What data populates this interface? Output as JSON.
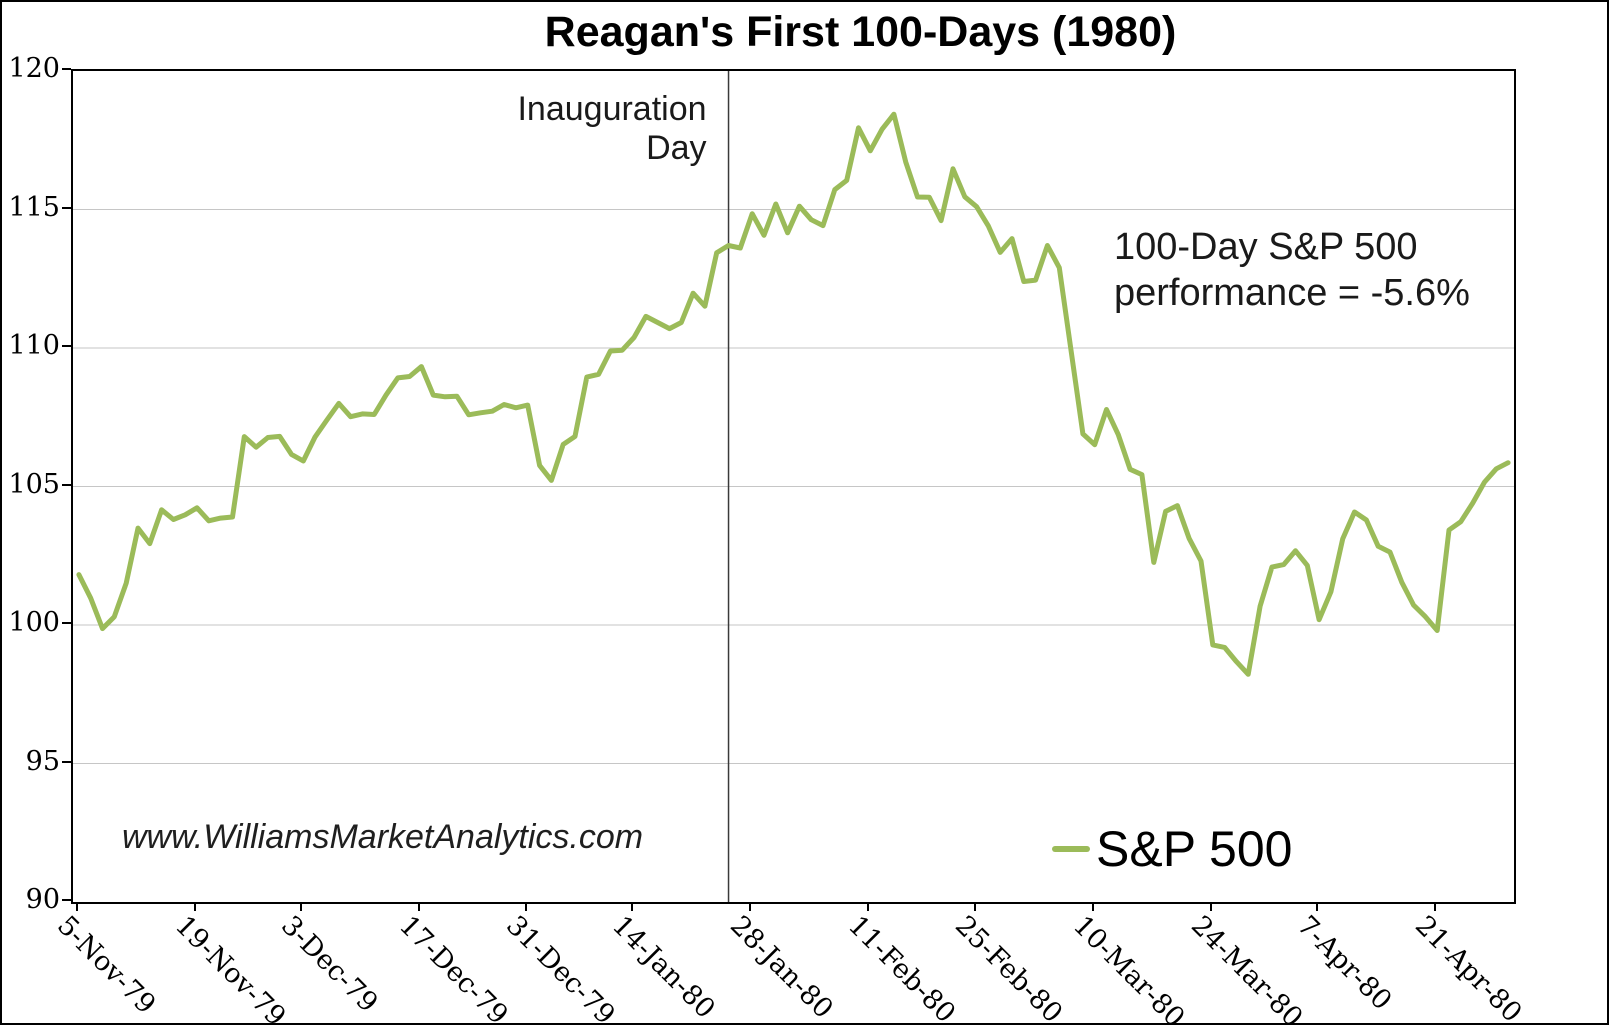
{
  "title": "Reagan's First 100-Days (1980)",
  "annotations": {
    "inauguration_label": "Inauguration Day",
    "performance_line1": "100-Day S&P 500",
    "performance_line2": "performance = -5.6%",
    "watermark": "www.WilliamsMarketAnalytics.com"
  },
  "legend": {
    "label": "S&P 500"
  },
  "colors": {
    "line": "#9BBB59",
    "grid": "#c6c6c6",
    "axis": "#000000",
    "marker_line": "#3a3a3a"
  },
  "chart_data": {
    "type": "line",
    "title": "Reagan's First 100-Days (1980)",
    "series_name": "S&P 500",
    "xlabel": "",
    "ylabel": "",
    "ylim": [
      90,
      120
    ],
    "y_ticks": [
      90,
      95,
      100,
      105,
      110,
      115,
      120
    ],
    "grid": "horizontal",
    "legend_position": "bottom-right-inside",
    "marker": {
      "label": "Inauguration Day",
      "date": "24-Jan-80"
    },
    "x_tick_labels": [
      "5-Nov-79",
      "19-Nov-79",
      "3-Dec-79",
      "17-Dec-79",
      "31-Dec-79",
      "14-Jan-80",
      "28-Jan-80",
      "11-Feb-80",
      "25-Feb-80",
      "10-Mar-80",
      "24-Mar-80",
      "7-Apr-80",
      "21-Apr-80"
    ],
    "dates": [
      "5-Nov-79",
      "6-Nov-79",
      "7-Nov-79",
      "8-Nov-79",
      "9-Nov-79",
      "12-Nov-79",
      "13-Nov-79",
      "14-Nov-79",
      "15-Nov-79",
      "16-Nov-79",
      "19-Nov-79",
      "20-Nov-79",
      "21-Nov-79",
      "23-Nov-79",
      "26-Nov-79",
      "27-Nov-79",
      "28-Nov-79",
      "29-Nov-79",
      "30-Nov-79",
      "3-Dec-79",
      "4-Dec-79",
      "5-Dec-79",
      "6-Dec-79",
      "7-Dec-79",
      "10-Dec-79",
      "11-Dec-79",
      "12-Dec-79",
      "13-Dec-79",
      "14-Dec-79",
      "17-Dec-79",
      "18-Dec-79",
      "19-Dec-79",
      "20-Dec-79",
      "21-Dec-79",
      "24-Dec-79",
      "26-Dec-79",
      "27-Dec-79",
      "28-Dec-79",
      "31-Dec-79",
      "2-Jan-80",
      "3-Jan-80",
      "4-Jan-80",
      "7-Jan-80",
      "8-Jan-80",
      "9-Jan-80",
      "10-Jan-80",
      "11-Jan-80",
      "14-Jan-80",
      "15-Jan-80",
      "16-Jan-80",
      "17-Jan-80",
      "18-Jan-80",
      "21-Jan-80",
      "22-Jan-80",
      "23-Jan-80",
      "24-Jan-80",
      "25-Jan-80",
      "28-Jan-80",
      "29-Jan-80",
      "30-Jan-80",
      "31-Jan-80",
      "1-Feb-80",
      "4-Feb-80",
      "5-Feb-80",
      "6-Feb-80",
      "7-Feb-80",
      "8-Feb-80",
      "11-Feb-80",
      "12-Feb-80",
      "13-Feb-80",
      "14-Feb-80",
      "15-Feb-80",
      "19-Feb-80",
      "20-Feb-80",
      "21-Feb-80",
      "22-Feb-80",
      "25-Feb-80",
      "26-Feb-80",
      "27-Feb-80",
      "28-Feb-80",
      "29-Feb-80",
      "3-Mar-80",
      "4-Mar-80",
      "5-Mar-80",
      "6-Mar-80",
      "7-Mar-80",
      "10-Mar-80",
      "11-Mar-80",
      "12-Mar-80",
      "13-Mar-80",
      "14-Mar-80",
      "17-Mar-80",
      "18-Mar-80",
      "19-Mar-80",
      "20-Mar-80",
      "21-Mar-80",
      "24-Mar-80",
      "25-Mar-80",
      "26-Mar-80",
      "27-Mar-80",
      "28-Mar-80",
      "31-Mar-80",
      "1-Apr-80",
      "2-Apr-80",
      "3-Apr-80",
      "7-Apr-80",
      "8-Apr-80",
      "9-Apr-80",
      "10-Apr-80",
      "11-Apr-80",
      "14-Apr-80",
      "15-Apr-80",
      "16-Apr-80",
      "17-Apr-80",
      "18-Apr-80",
      "21-Apr-80",
      "22-Apr-80",
      "23-Apr-80",
      "24-Apr-80",
      "25-Apr-80",
      "28-Apr-80",
      "29-Apr-80"
    ],
    "values": [
      101.82,
      100.97,
      99.87,
      100.3,
      101.51,
      103.5,
      102.94,
      104.16,
      103.81,
      103.98,
      104.23,
      103.76,
      103.86,
      103.9,
      106.8,
      106.42,
      106.77,
      106.81,
      106.16,
      105.92,
      106.79,
      107.4,
      108.0,
      107.52,
      107.62,
      107.6,
      108.3,
      108.92,
      108.97,
      109.33,
      108.3,
      108.24,
      108.26,
      107.59,
      107.66,
      107.72,
      107.96,
      107.84,
      107.94,
      105.76,
      105.22,
      106.52,
      106.81,
      108.95,
      109.05,
      109.89,
      109.92,
      110.38,
      111.14,
      110.92,
      110.7,
      110.92,
      111.98,
      111.51,
      113.44,
      113.7,
      113.61,
      114.85,
      114.07,
      115.2,
      114.16,
      115.12,
      114.63,
      114.42,
      115.72,
      116.05,
      117.95,
      117.12,
      117.9,
      118.44,
      116.72,
      115.45,
      115.44,
      114.6,
      116.47,
      115.46,
      115.1,
      114.4,
      113.45,
      113.95,
      112.4,
      112.45,
      113.7,
      112.9,
      109.9,
      106.9,
      106.51,
      107.78,
      106.87,
      105.62,
      105.43,
      102.26,
      104.1,
      104.31,
      103.12,
      102.31,
      99.28,
      99.19,
      98.68,
      98.22,
      100.68,
      102.09,
      102.18,
      102.68,
      102.15,
      100.19,
      101.2,
      103.11,
      104.08,
      103.79,
      102.84,
      102.63,
      101.54,
      100.72,
      100.3,
      99.8,
      103.43,
      103.73,
      104.4,
      105.16,
      105.64,
      105.86
    ]
  }
}
